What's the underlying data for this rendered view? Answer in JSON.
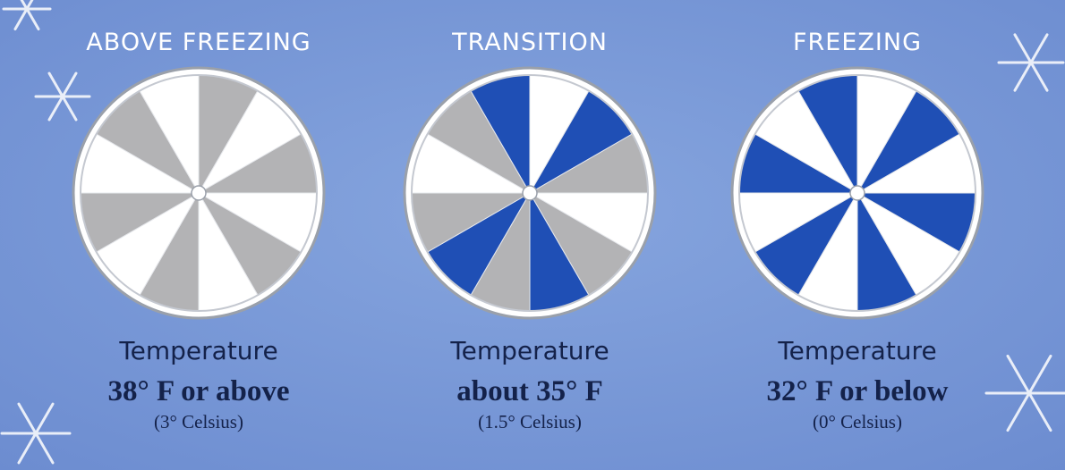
{
  "panels": [
    {
      "title": "ABOVE FREEZING",
      "label": "Temperature",
      "fahrenheit": "38° F or above",
      "celsius": "(3° Celsius)"
    },
    {
      "title": "TRANSITION",
      "label": "Temperature",
      "fahrenheit": "about 35° F",
      "celsius": "(1.5° Celsius)"
    },
    {
      "title": "FREEZING",
      "label": "Temperature",
      "fahrenheit": "32° F or below",
      "celsius": "(0° Celsius)"
    }
  ]
}
